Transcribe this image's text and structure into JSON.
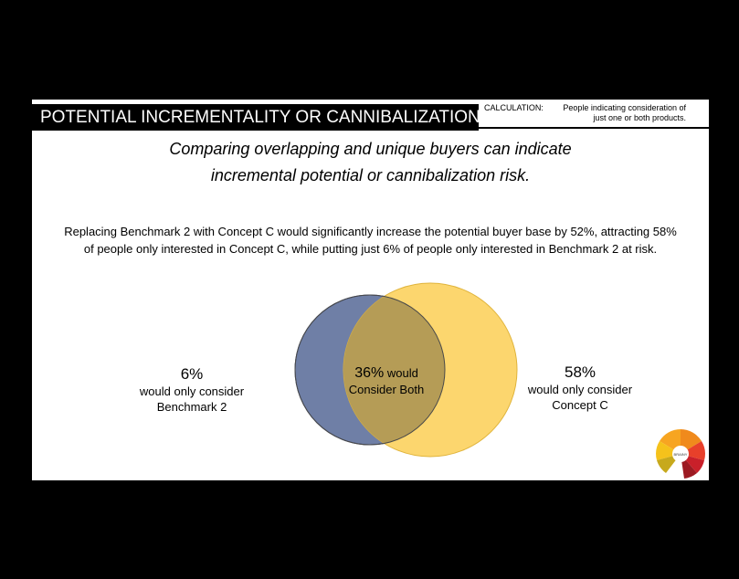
{
  "header": {
    "title": "POTENTIAL INCREMENTALITY OR CANNIBALIZATION",
    "calculation_label": "CALCULATION:",
    "calculation_text_line1": "People indicating consideration of",
    "calculation_text_line2": "just one or both products."
  },
  "subtitle": {
    "line1": "Comparing overlapping and unique buyers can indicate",
    "line2": "incremental potential or cannibalization risk."
  },
  "summary": {
    "line1": "Replacing Benchmark 2 with Concept C would significantly increase the potential buyer base by 52%, attracting 58%",
    "line2": "of people only interested in Concept C, while putting just 6% of people only interested in Benchmark 2 at risk."
  },
  "venn": {
    "left": {
      "pct": "6%",
      "line1": "would only consider",
      "line2": "Benchmark 2",
      "color": "#6f7fa6"
    },
    "right": {
      "pct": "58%",
      "line1": "would only consider",
      "line2": "Concept C",
      "color": "#fcd66e"
    },
    "both": {
      "pct": "36%",
      "word": "would",
      "line2": "Consider Both",
      "color": "#b59c56"
    }
  },
  "logo": {
    "center_text": "BRAINY"
  }
}
